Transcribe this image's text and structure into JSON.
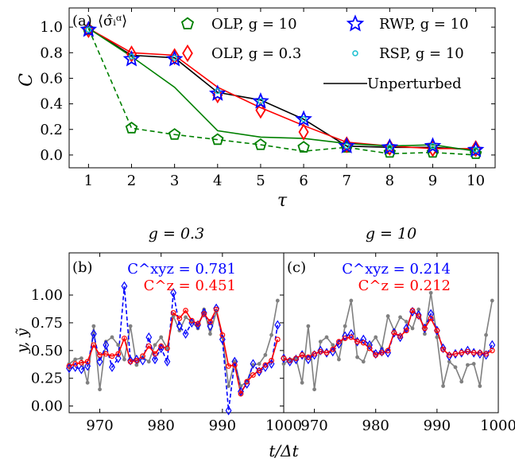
{
  "chart_data": [
    {
      "id": "a",
      "type": "line",
      "panel_label": "(a)",
      "annotation": "⟨σ̂ᵢᵅ⟩",
      "xlabel": "τ",
      "ylabel": "C",
      "xlim": [
        0.55,
        10.45
      ],
      "ylim": [
        -0.1,
        1.15
      ],
      "xticks": [
        1,
        2,
        3,
        4,
        5,
        6,
        7,
        8,
        9,
        10
      ],
      "yticks": [
        0.0,
        0.2,
        0.4,
        0.6,
        0.8,
        1.0
      ],
      "ytick_labels": [
        "0.0",
        "0.2",
        "0.4",
        "0.6",
        "0.8",
        "1.0"
      ],
      "grid": false,
      "legend_position": "top-right",
      "x": [
        1,
        2,
        3,
        4,
        5,
        6,
        7,
        8,
        9,
        10
      ],
      "lines": [
        {
          "name": "Unperturbed",
          "color": "#000000",
          "style": "solid",
          "values": [
            0.99,
            0.78,
            0.76,
            0.49,
            0.43,
            0.28,
            0.07,
            0.06,
            0.06,
            0.04
          ]
        },
        {
          "name": "",
          "color": "#ff0000",
          "style": "solid",
          "values": [
            0.99,
            0.8,
            0.78,
            0.53,
            0.37,
            0.23,
            0.1,
            0.07,
            0.05,
            0.05
          ]
        },
        {
          "name": "",
          "color": "#008000",
          "style": "solid",
          "values": [
            0.99,
            0.77,
            0.53,
            0.19,
            0.14,
            0.13,
            0.09,
            0.07,
            0.08,
            0.03
          ]
        },
        {
          "name": "",
          "color": "#008000",
          "style": "dashed",
          "values": [
            0.99,
            0.21,
            0.16,
            0.12,
            0.08,
            0.03,
            0.06,
            0.01,
            0.02,
            0.0
          ]
        }
      ],
      "series": [
        {
          "name": "OLP, g = 10",
          "marker": "pentagon",
          "color": "#008000",
          "values": [
            0.98,
            0.21,
            0.16,
            0.12,
            0.08,
            0.06,
            0.06,
            0.02,
            0.02,
            0.01
          ]
        },
        {
          "name": "OLP, g = 0.3",
          "marker": "diamond",
          "color": "#ff0000",
          "values": [
            0.98,
            0.79,
            0.77,
            0.47,
            0.35,
            0.18,
            0.08,
            0.06,
            0.05,
            0.05
          ]
        },
        {
          "name": "RWP, g = 10",
          "marker": "star",
          "color": "#0000ff",
          "values": [
            0.98,
            0.75,
            0.75,
            0.48,
            0.42,
            0.28,
            0.07,
            0.06,
            0.07,
            0.04
          ]
        },
        {
          "name": "RSP, g = 10",
          "marker": "circle",
          "color": "#17becf",
          "values": [
            0.98,
            0.77,
            0.76,
            0.5,
            0.42,
            0.28,
            0.07,
            0.06,
            0.07,
            0.04
          ]
        }
      ]
    },
    {
      "id": "b",
      "type": "line",
      "panel_label": "(b)",
      "title": "g = 0.3",
      "ylabel": "y, ỹ",
      "xlabel": "t/Δt",
      "xlim": [
        965,
        1000
      ],
      "ylim": [
        -0.06,
        1.38
      ],
      "xticks": [
        970,
        980,
        990,
        1000
      ],
      "yticks": [
        0.0,
        0.25,
        0.5,
        0.75,
        1.0
      ],
      "ytick_labels": [
        "0.00",
        "0.25",
        "0.50",
        "0.75",
        "1.00"
      ],
      "annotations": [
        {
          "text": "C^xyz = 0.781",
          "color": "#0000ff"
        },
        {
          "text": "C^z = 0.451",
          "color": "#ff0000"
        }
      ],
      "x_start": 965,
      "series": [
        {
          "name": "",
          "color": "#808080",
          "marker": "circle",
          "style": "solid",
          "values": [
            0.38,
            0.42,
            0.43,
            0.21,
            0.72,
            0.15,
            0.58,
            0.62,
            0.55,
            0.42,
            0.72,
            0.37,
            0.44,
            0.4,
            0.55,
            0.62,
            0.52,
            0.81,
            0.68,
            0.8,
            0.76,
            0.7,
            0.87,
            0.65,
            0.85,
            0.62,
            0.18,
            0.4,
            0.18,
            0.22,
            0.37,
            0.38,
            0.46,
            0.64,
            0.95
          ]
        },
        {
          "name": "",
          "color": "#0000ff",
          "marker": "diamond",
          "style": "dashed",
          "values": [
            0.34,
            0.35,
            0.33,
            0.36,
            0.65,
            0.4,
            0.55,
            0.35,
            0.43,
            1.08,
            0.41,
            0.42,
            0.41,
            0.62,
            0.42,
            0.52,
            0.4,
            1.02,
            0.72,
            0.65,
            0.75,
            0.73,
            0.84,
            0.72,
            0.88,
            0.6,
            -0.04,
            0.4,
            0.13,
            0.2,
            0.38,
            0.31,
            0.35,
            0.38,
            0.73
          ]
        },
        {
          "name": "",
          "color": "#ff0000",
          "marker": "circle",
          "style": "solid",
          "values": [
            0.36,
            0.38,
            0.39,
            0.4,
            0.55,
            0.46,
            0.47,
            0.45,
            0.47,
            0.61,
            0.4,
            0.41,
            0.45,
            0.54,
            0.47,
            0.54,
            0.52,
            0.84,
            0.79,
            0.86,
            0.77,
            0.74,
            0.83,
            0.76,
            0.87,
            0.64,
            0.36,
            0.37,
            0.11,
            0.22,
            0.28,
            0.32,
            0.37,
            0.41,
            0.6
          ]
        }
      ]
    },
    {
      "id": "c",
      "type": "line",
      "panel_label": "(c)",
      "title": "g = 10",
      "xlabel": "t/Δt",
      "xlim": [
        965,
        1000
      ],
      "ylim": [
        -0.06,
        1.38
      ],
      "xticks": [
        970,
        980,
        990,
        1000
      ],
      "annotations": [
        {
          "text": "C^xyz = 0.214",
          "color": "#0000ff"
        },
        {
          "text": "C^z = 0.212",
          "color": "#ff0000"
        }
      ],
      "x_start": 965,
      "series": [
        {
          "name": "",
          "color": "#808080",
          "marker": "circle",
          "style": "solid",
          "values": [
            0.38,
            0.42,
            0.43,
            0.21,
            0.72,
            0.15,
            0.58,
            0.62,
            0.55,
            0.42,
            0.72,
            0.95,
            0.44,
            0.4,
            0.55,
            0.62,
            0.52,
            0.81,
            0.68,
            0.8,
            0.76,
            0.7,
            0.87,
            0.65,
            1.02,
            0.62,
            0.18,
            0.4,
            0.35,
            0.22,
            0.37,
            0.38,
            0.18,
            0.64,
            0.95
          ]
        },
        {
          "name": "",
          "color": "#0000ff",
          "marker": "diamond",
          "style": "dashed",
          "values": [
            0.43,
            0.4,
            0.42,
            0.46,
            0.42,
            0.46,
            0.5,
            0.48,
            0.49,
            0.56,
            0.63,
            0.65,
            0.58,
            0.6,
            0.55,
            0.47,
            0.49,
            0.48,
            0.66,
            0.62,
            0.7,
            0.85,
            0.82,
            0.7,
            0.83,
            0.68,
            0.52,
            0.45,
            0.47,
            0.48,
            0.5,
            0.48,
            0.47,
            0.46,
            0.55
          ]
        },
        {
          "name": "",
          "color": "#ff0000",
          "marker": "circle",
          "style": "solid",
          "values": [
            0.43,
            0.41,
            0.43,
            0.46,
            0.44,
            0.47,
            0.49,
            0.48,
            0.51,
            0.58,
            0.61,
            0.62,
            0.58,
            0.57,
            0.52,
            0.46,
            0.48,
            0.5,
            0.66,
            0.63,
            0.68,
            0.86,
            0.81,
            0.7,
            0.79,
            0.68,
            0.51,
            0.46,
            0.47,
            0.48,
            0.49,
            0.48,
            0.48,
            0.47,
            0.5
          ]
        }
      ]
    }
  ]
}
